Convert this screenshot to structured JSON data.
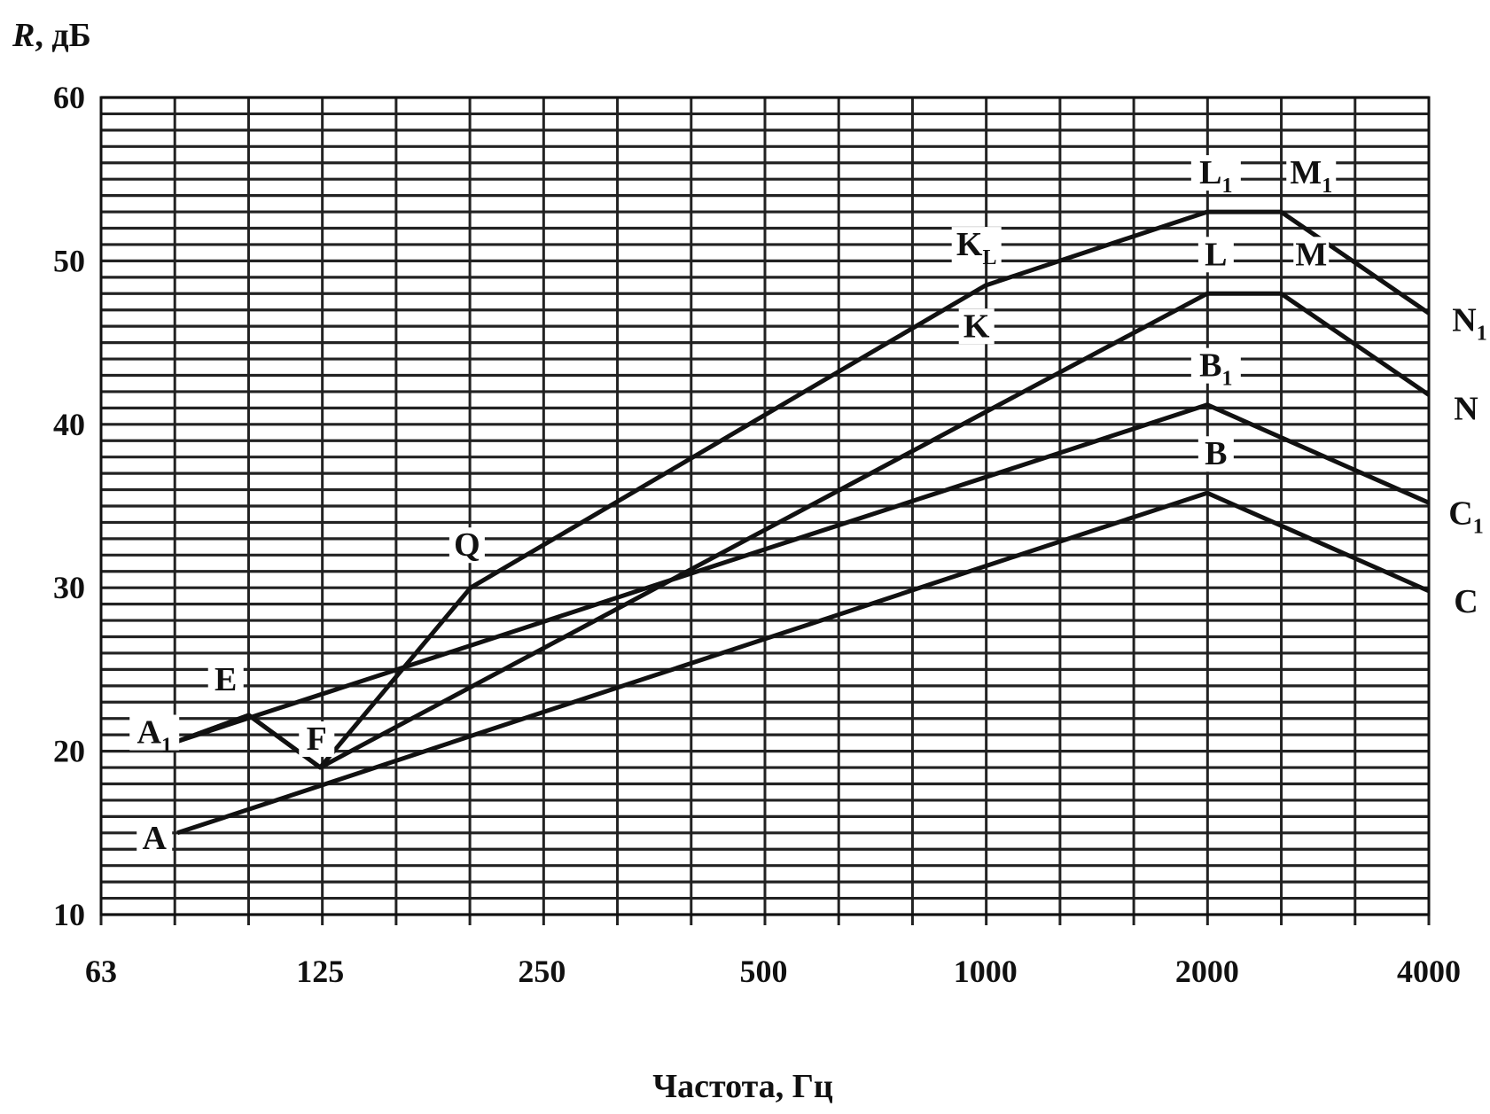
{
  "chart_data": {
    "type": "line",
    "title": "",
    "ylabel_main": "R",
    "ylabel_unit": ", дБ",
    "xlabel": "Частота,  Гц",
    "x_scale": "log2",
    "xlim": [
      63,
      4000
    ],
    "ylim": [
      10,
      60
    ],
    "grid": "on",
    "x_ticks": [
      {
        "value": 63,
        "label": "63"
      },
      {
        "value": 125,
        "label": "125"
      },
      {
        "value": 250,
        "label": "250"
      },
      {
        "value": 500,
        "label": "500"
      },
      {
        "value": 1000,
        "label": "1000"
      },
      {
        "value": 2000,
        "label": "2000"
      },
      {
        "value": 4000,
        "label": "4000"
      }
    ],
    "y_ticks": [
      {
        "value": 60,
        "label": "60"
      },
      {
        "value": 50,
        "label": "50"
      },
      {
        "value": 40,
        "label": "40"
      },
      {
        "value": 30,
        "label": "30"
      },
      {
        "value": 20,
        "label": "20"
      },
      {
        "value": 10,
        "label": "10"
      }
    ],
    "series": [
      {
        "points": [
          [
            80,
            15
          ],
          [
            2000,
            35.8
          ],
          [
            4000,
            29.8
          ]
        ]
      },
      {
        "points": [
          [
            80,
            20.6
          ],
          [
            2000,
            41.2
          ],
          [
            4000,
            35.2
          ]
        ]
      },
      {
        "points": [
          [
            80,
            20.6
          ],
          [
            100,
            22.2
          ],
          [
            125,
            19
          ],
          [
            2000,
            48
          ],
          [
            2520,
            48
          ],
          [
            4000,
            41.8
          ]
        ]
      },
      {
        "points": [
          [
            80,
            20.6
          ],
          [
            100,
            22.2
          ],
          [
            125,
            19
          ],
          [
            200,
            30
          ],
          [
            1000,
            48.5
          ],
          [
            2000,
            53
          ],
          [
            2520,
            53
          ],
          [
            4000,
            46.8
          ]
        ]
      }
    ],
    "point_labels": [
      {
        "text": "A",
        "x": 80,
        "y": 15
      },
      {
        "text": "A",
        "sub": "1",
        "x": 80,
        "y": 20.6
      },
      {
        "text": "E",
        "x": 100,
        "y": 22.2
      },
      {
        "text": "F",
        "x": 125,
        "y": 19
      },
      {
        "text": "Q",
        "x": 200,
        "y": 30
      },
      {
        "text": "K",
        "sub": "L",
        "x": 1000,
        "y": 48.5
      },
      {
        "text": "K",
        "x": 1000,
        "y": 43.5
      },
      {
        "text": "L",
        "sub": "1",
        "x": 2000,
        "y": 53
      },
      {
        "text": "M",
        "sub": "1",
        "x": 2520,
        "y": 53
      },
      {
        "text": "L",
        "x": 2000,
        "y": 48
      },
      {
        "text": "M",
        "x": 2520,
        "y": 48
      },
      {
        "text": "B",
        "sub": "1",
        "x": 2000,
        "y": 41.2
      },
      {
        "text": "B",
        "x": 2000,
        "y": 35.8
      },
      {
        "text": "N",
        "sub": "1",
        "x": 4000,
        "y": 46.8
      },
      {
        "text": "N",
        "x": 4000,
        "y": 41.8
      },
      {
        "text": "C",
        "sub": "1",
        "x": 4000,
        "y": 35.2
      },
      {
        "text": "C",
        "x": 4000,
        "y": 29.8
      }
    ]
  }
}
